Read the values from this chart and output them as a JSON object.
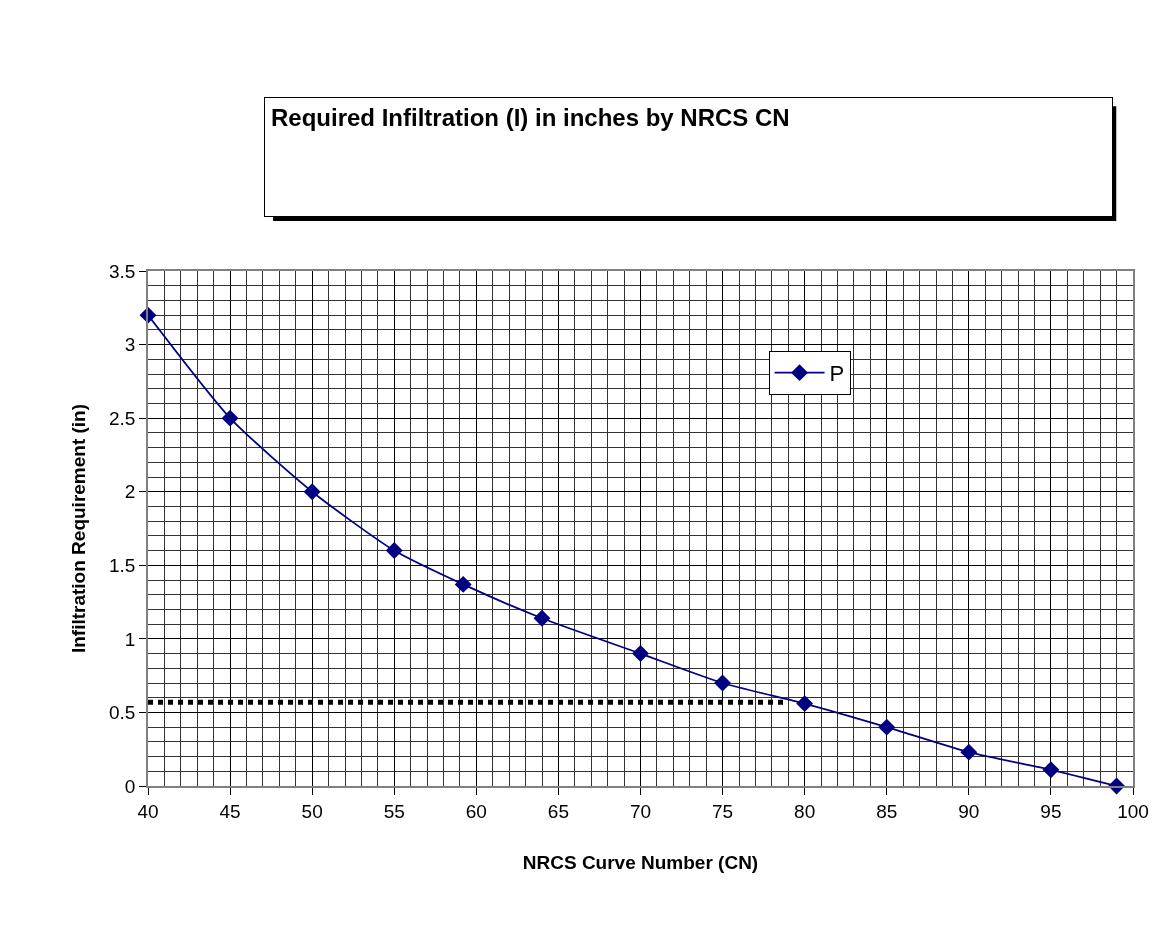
{
  "chart_data": {
    "type": "line",
    "title": "Required Infiltration (I) in inches by NRCS CN",
    "xlabel": "NRCS Curve Number (CN)",
    "ylabel": "Infiltration Requirement (in)",
    "xlim": [
      40,
      100
    ],
    "xticks": [
      40,
      45,
      50,
      55,
      60,
      65,
      70,
      75,
      80,
      85,
      90,
      95,
      100
    ],
    "ylim": [
      0,
      3.5
    ],
    "yticks": [
      0,
      0.5,
      1,
      1.5,
      2,
      2.5,
      3,
      3.5
    ],
    "grid": true,
    "legend": "top right",
    "series": [
      {
        "name": "P",
        "color": "#000080",
        "marker": "diamond",
        "line_style": "solid",
        "x": [
          40,
          45,
          50,
          55,
          59.2,
          64,
          70,
          75,
          80,
          85,
          90,
          95,
          99
        ],
        "values": [
          3.2,
          2.5,
          2.0,
          1.6,
          1.37,
          1.14,
          0.9,
          0.7,
          0.56,
          0.4,
          0.23,
          0.11,
          0
        ]
      },
      {
        "color": "#000000",
        "marker": "none",
        "line_style": "dotted",
        "x": [
          40,
          78.7
        ],
        "values": [
          0.57,
          0.57
        ]
      }
    ]
  }
}
